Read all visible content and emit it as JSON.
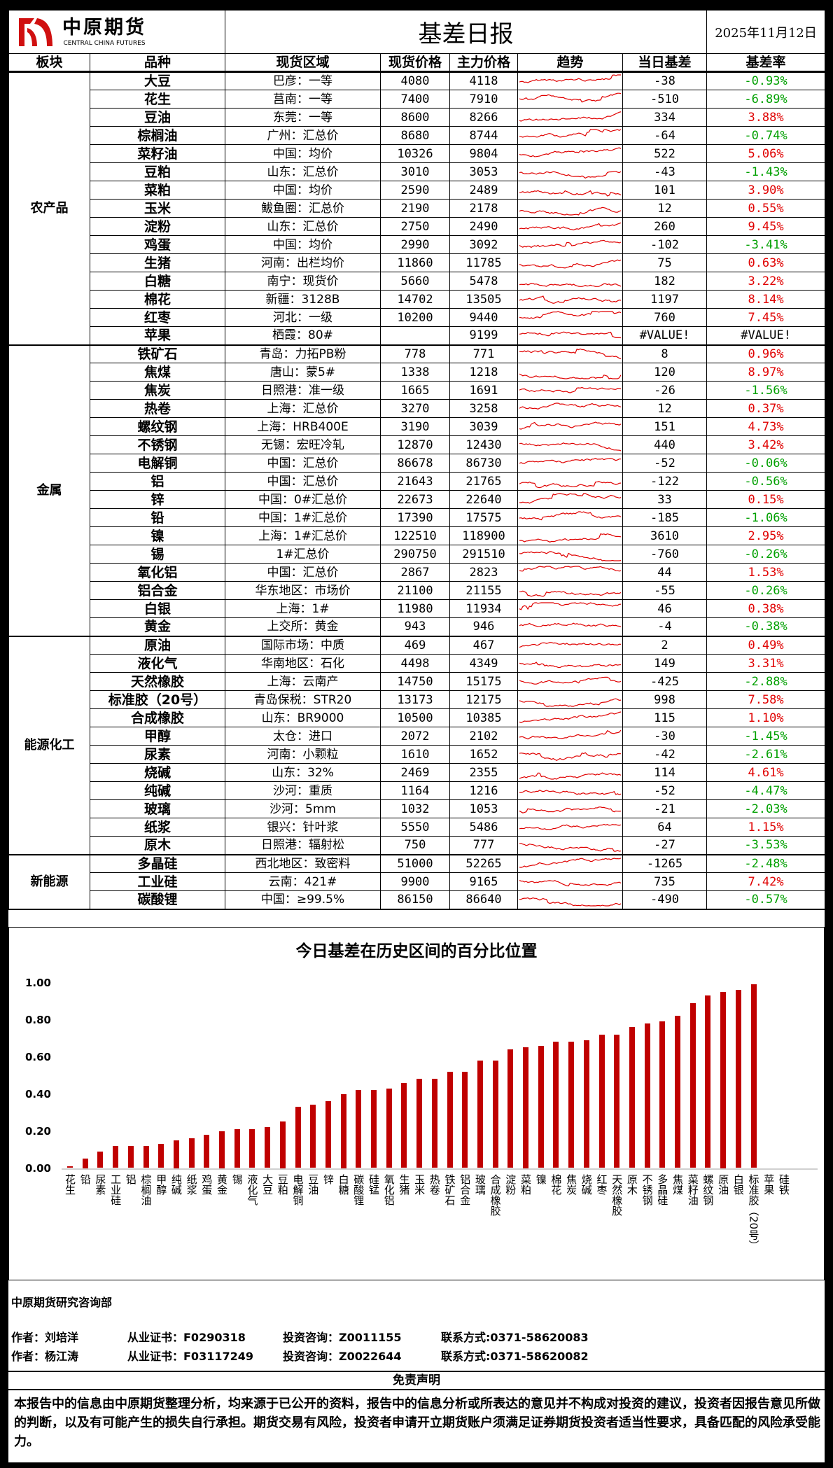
{
  "header": {
    "logo_cn": "中原期货",
    "logo_en": "CENTRAL CHINA FUTURES",
    "title": "基差日报",
    "date": "2025年11月12日"
  },
  "columns": [
    "板块",
    "品种",
    "现货区域",
    "现货价格",
    "主力价格",
    "趋势",
    "当日基差",
    "基差率"
  ],
  "colors": {
    "positive": "#e00000",
    "negative": "#00a000",
    "bar": "#c00000",
    "sparkline": "#e00000"
  },
  "sections": [
    {
      "name": "农产品",
      "rows": [
        [
          "大豆",
          "巴彦：一等",
          "4080",
          "4118",
          "-38",
          "-0.93%"
        ],
        [
          "花生",
          "莒南：一等",
          "7400",
          "7910",
          "-510",
          "-6.89%"
        ],
        [
          "豆油",
          "东莞：一等",
          "8600",
          "8266",
          "334",
          "3.88%"
        ],
        [
          "棕榈油",
          "广州：汇总价",
          "8680",
          "8744",
          "-64",
          "-0.74%"
        ],
        [
          "菜籽油",
          "中国：均价",
          "10326",
          "9804",
          "522",
          "5.06%"
        ],
        [
          "豆粕",
          "山东：汇总价",
          "3010",
          "3053",
          "-43",
          "-1.43%"
        ],
        [
          "菜粕",
          "中国：均价",
          "2590",
          "2489",
          "101",
          "3.90%"
        ],
        [
          "玉米",
          "鲅鱼圈：汇总价",
          "2190",
          "2178",
          "12",
          "0.55%"
        ],
        [
          "淀粉",
          "山东：汇总价",
          "2750",
          "2490",
          "260",
          "9.45%"
        ],
        [
          "鸡蛋",
          "中国：均价",
          "2990",
          "3092",
          "-102",
          "-3.41%"
        ],
        [
          "生猪",
          "河南：出栏均价",
          "11860",
          "11785",
          "75",
          "0.63%"
        ],
        [
          "白糖",
          "南宁：现货价",
          "5660",
          "5478",
          "182",
          "3.22%"
        ],
        [
          "棉花",
          "新疆：3128B",
          "14702",
          "13505",
          "1197",
          "8.14%"
        ],
        [
          "红枣",
          "河北：一级",
          "10200",
          "9440",
          "760",
          "7.45%"
        ],
        [
          "苹果",
          "栖霞：80#",
          "",
          "9199",
          "#VALUE!",
          "#VALUE!"
        ]
      ]
    },
    {
      "name": "金属",
      "rows": [
        [
          "铁矿石",
          "青岛：力拓PB粉",
          "778",
          "771",
          "8",
          "0.96%"
        ],
        [
          "焦煤",
          "唐山：蒙5#",
          "1338",
          "1218",
          "120",
          "8.97%"
        ],
        [
          "焦炭",
          "日照港：准一级",
          "1665",
          "1691",
          "-26",
          "-1.56%"
        ],
        [
          "热卷",
          "上海：汇总价",
          "3270",
          "3258",
          "12",
          "0.37%"
        ],
        [
          "螺纹钢",
          "上海：HRB400E",
          "3190",
          "3039",
          "151",
          "4.73%"
        ],
        [
          "不锈钢",
          "无锡：宏旺冷轧",
          "12870",
          "12430",
          "440",
          "3.42%"
        ],
        [
          "电解铜",
          "中国：汇总价",
          "86678",
          "86730",
          "-52",
          "-0.06%"
        ],
        [
          "铝",
          "中国：汇总价",
          "21643",
          "21765",
          "-122",
          "-0.56%"
        ],
        [
          "锌",
          "中国：0#汇总价",
          "22673",
          "22640",
          "33",
          "0.15%"
        ],
        [
          "铅",
          "中国：1#汇总价",
          "17390",
          "17575",
          "-185",
          "-1.06%"
        ],
        [
          "镍",
          "上海：1#汇总价",
          "122510",
          "118900",
          "3610",
          "2.95%"
        ],
        [
          "锡",
          "1#汇总价",
          "290750",
          "291510",
          "-760",
          "-0.26%"
        ],
        [
          "氧化铝",
          "中国：汇总价",
          "2867",
          "2823",
          "44",
          "1.53%"
        ],
        [
          "铝合金",
          "华东地区：市场价",
          "21100",
          "21155",
          "-55",
          "-0.26%"
        ],
        [
          "白银",
          "上海：1#",
          "11980",
          "11934",
          "46",
          "0.38%"
        ],
        [
          "黄金",
          "上交所：黄金",
          "943",
          "946",
          "-4",
          "-0.38%"
        ]
      ]
    },
    {
      "name": "能源化工",
      "rows": [
        [
          "原油",
          "国际市场：中质",
          "469",
          "467",
          "2",
          "0.49%"
        ],
        [
          "液化气",
          "华南地区：石化",
          "4498",
          "4349",
          "149",
          "3.31%"
        ],
        [
          "天然橡胶",
          "上海：云南产",
          "14750",
          "15175",
          "-425",
          "-2.88%"
        ],
        [
          "标准胶（20号）",
          "青岛保税：STR20",
          "13173",
          "12175",
          "998",
          "7.58%"
        ],
        [
          "合成橡胶",
          "山东：BR9000",
          "10500",
          "10385",
          "115",
          "1.10%"
        ],
        [
          "甲醇",
          "太仓：进口",
          "2072",
          "2102",
          "-30",
          "-1.45%"
        ],
        [
          "尿素",
          "河南：小颗粒",
          "1610",
          "1652",
          "-42",
          "-2.61%"
        ],
        [
          "烧碱",
          "山东：32%",
          "2469",
          "2355",
          "114",
          "4.61%"
        ],
        [
          "纯碱",
          "沙河：重质",
          "1164",
          "1216",
          "-52",
          "-4.47%"
        ],
        [
          "玻璃",
          "沙河：5mm",
          "1032",
          "1053",
          "-21",
          "-2.03%"
        ],
        [
          "纸浆",
          "银兴：针叶浆",
          "5550",
          "5486",
          "64",
          "1.15%"
        ],
        [
          "原木",
          "日照港：辐射松",
          "750",
          "777",
          "-27",
          "-3.53%"
        ]
      ]
    },
    {
      "name": "新能源",
      "rows": [
        [
          "多晶硅",
          "西北地区：致密料",
          "51000",
          "52265",
          "-1265",
          "-2.48%"
        ],
        [
          "工业硅",
          "云南：421#",
          "9900",
          "9165",
          "735",
          "7.42%"
        ],
        [
          "碳酸锂",
          "中国：≥99.5%",
          "86150",
          "86640",
          "-490",
          "-0.57%"
        ]
      ]
    }
  ],
  "chart_data": {
    "type": "bar",
    "title": "今日基差在历史区间的百分比位置",
    "xlabel": "",
    "ylabel": "",
    "ylim": [
      0,
      1
    ],
    "yticks": [
      "0.00",
      "0.20",
      "0.40",
      "0.60",
      "0.80",
      "1.00"
    ],
    "grid": false,
    "categories": [
      "花生",
      "铅",
      "尿素",
      "工业硅",
      "铝",
      "棕榈油",
      "甲醇",
      "纯碱",
      "纸浆",
      "鸡蛋",
      "黄金",
      "锡",
      "液化气",
      "大豆",
      "豆粕",
      "电解铜",
      "豆油",
      "锌",
      "白糖",
      "碳酸锂",
      "硅锰",
      "氧化铝",
      "生猪",
      "玉米",
      "热卷",
      "铁矿石",
      "铝合金",
      "玻璃",
      "合成橡胶",
      "淀粉",
      "菜粕",
      "镍",
      "棉花",
      "焦炭",
      "烧碱",
      "红枣",
      "天然橡胶",
      "原木",
      "不锈钢",
      "多晶硅",
      "焦煤",
      "菜籽油",
      "螺纹钢",
      "原油",
      "白银",
      "标准胶（20号）",
      "苹果",
      "硅铁"
    ],
    "values": [
      0.01,
      0.05,
      0.09,
      0.12,
      0.12,
      0.12,
      0.13,
      0.15,
      0.16,
      0.18,
      0.2,
      0.21,
      0.21,
      0.22,
      0.25,
      0.33,
      0.34,
      0.36,
      0.4,
      0.42,
      0.42,
      0.43,
      0.46,
      0.48,
      0.48,
      0.52,
      0.52,
      0.58,
      0.58,
      0.64,
      0.65,
      0.66,
      0.68,
      0.68,
      0.69,
      0.72,
      0.72,
      0.76,
      0.78,
      0.79,
      0.82,
      0.89,
      0.93,
      0.95,
      0.96,
      0.99,
      0,
      0
    ]
  },
  "footer": {
    "dept": "中原期货研究咨询部",
    "authors": [
      {
        "name": "作者：刘培洋",
        "cert": "从业证书：F0290318",
        "advice": "投资咨询：Z0011155",
        "contact": "联系方式:0371-58620083"
      },
      {
        "name": "作者：杨江涛",
        "cert": "从业证书：F03117249",
        "advice": "投资咨询：Z0022644",
        "contact": "联系方式:0371-58620082"
      }
    ],
    "disclaimer_title": "免责声明",
    "disclaimer": "本报告中的信息由中原期货整理分析，均来源于已公开的资料，报告中的信息分析或所表达的意见并不构成对投资的建议，投资者因报告意见所做的判断，以及有可能产生的损失自行承担。期货交易有风险，投资者申请开立期货账户须满足证券期货投资者适当性要求，具备匹配的风险承受能力。"
  }
}
